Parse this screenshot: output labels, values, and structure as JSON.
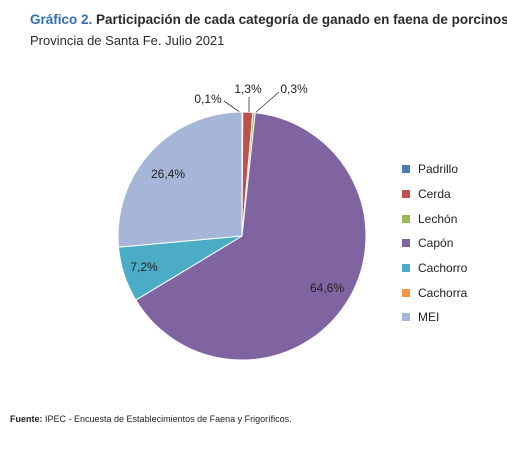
{
  "title_number": "Gráfico 2.",
  "title_text": "Participación de cada categoría de ganado en faena de porcinos",
  "subtitle": "Provincia de Santa Fe. Julio 2021",
  "source_label": "Fuente:",
  "source_text": "IPEC - Encuesta de Establecimientos de Faena y Frigoríficos.",
  "chart_data": {
    "type": "pie",
    "categories": [
      "Padrillo",
      "Cerda",
      "Lechón",
      "Capón",
      "Cachorro",
      "Cachorra",
      "MEI"
    ],
    "values": [
      0.1,
      1.3,
      0.3,
      64.6,
      7.2,
      0.0,
      26.4
    ],
    "value_labels": [
      "0,1%",
      "1,3%",
      "0,3%",
      "64,6%",
      "7,2%",
      "",
      "26,4%"
    ],
    "colors": [
      "#4a7ebb",
      "#c0504d",
      "#9bbb59",
      "#8064a2",
      "#4bacc6",
      "#f79646",
      "#a5b6d8"
    ],
    "legend_position": "right"
  }
}
